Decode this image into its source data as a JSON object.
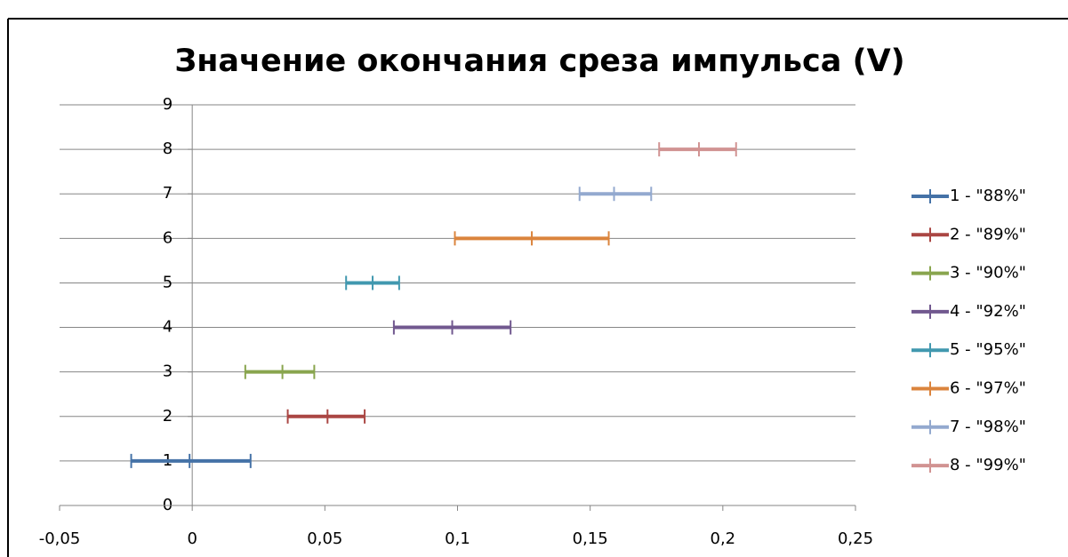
{
  "chart_data": {
    "type": "scatter",
    "title": "Значение окончания среза импульса (V)",
    "xlim": [
      -0.05,
      0.25
    ],
    "xticks": [
      {
        "value": -0.05,
        "label": "-0,05"
      },
      0,
      {
        "value": 0.05,
        "label": "0,05"
      },
      {
        "value": 0.1,
        "label": "0,1"
      },
      {
        "value": 0.15,
        "label": "0,15"
      },
      {
        "value": 0.2,
        "label": "0,2"
      },
      {
        "value": 0.25,
        "label": "0,25"
      }
    ],
    "ylim": [
      0,
      9
    ],
    "yticks": [
      0,
      1,
      2,
      3,
      4,
      5,
      6,
      7,
      8,
      9
    ],
    "grid": true,
    "legend": "right",
    "series": [
      {
        "name": "1 - \"88%\"",
        "color": "#4572a7",
        "x": [
          -0.023,
          -0.001,
          0.022
        ],
        "values": [
          1,
          1,
          1
        ]
      },
      {
        "name": "2 - \"89%\"",
        "color": "#aa4643",
        "x": [
          0.036,
          0.051,
          0.065
        ],
        "values": [
          2,
          2,
          2
        ]
      },
      {
        "name": "3 - \"90%\"",
        "color": "#89a54e",
        "x": [
          0.02,
          0.034,
          0.046
        ],
        "values": [
          3,
          3,
          3
        ]
      },
      {
        "name": "4 - \"92%\"",
        "color": "#71588f",
        "x": [
          0.076,
          0.098,
          0.12
        ],
        "values": [
          4,
          4,
          4
        ]
      },
      {
        "name": "5 - \"95%\"",
        "color": "#4198af",
        "x": [
          0.058,
          0.068,
          0.078
        ],
        "values": [
          5,
          5,
          5
        ]
      },
      {
        "name": "6 - \"97%\"",
        "color": "#db843d",
        "x": [
          0.099,
          0.128,
          0.157
        ],
        "values": [
          6,
          6,
          6
        ]
      },
      {
        "name": "7 - \"98%\"",
        "color": "#93a9cf",
        "x": [
          0.146,
          0.159,
          0.173
        ],
        "values": [
          7,
          7,
          7
        ]
      },
      {
        "name": "8 - \"99%\"",
        "color": "#d19392",
        "x": [
          0.176,
          0.191,
          0.205
        ],
        "values": [
          8,
          8,
          8
        ]
      }
    ]
  }
}
